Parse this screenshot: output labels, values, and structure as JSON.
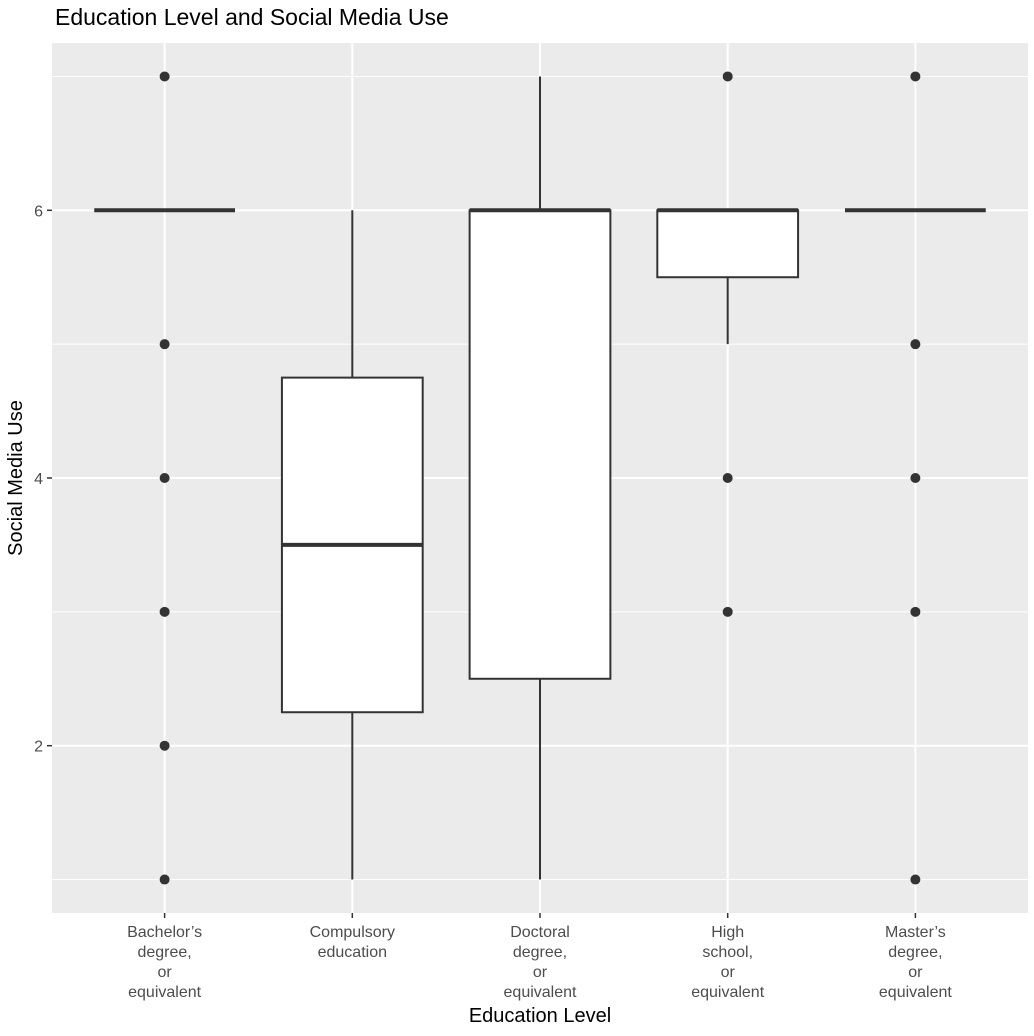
{
  "chart_data": {
    "type": "box",
    "title": "Education Level and Social Media Use",
    "xlabel": "Education Level",
    "ylabel": "Social Media Use",
    "ylim": [
      0.75,
      7.25
    ],
    "yticks": [
      "2",
      "4",
      "6"
    ],
    "categories": [
      [
        "Bachelor’s",
        "degree,",
        "or",
        "equivalent"
      ],
      [
        "Compulsory",
        "education"
      ],
      [
        "Doctoral",
        "degree,",
        "or",
        "equivalent"
      ],
      [
        "High",
        "school,",
        "or",
        "equivalent"
      ],
      [
        "Master’s",
        "degree,",
        "or",
        "equivalent"
      ]
    ],
    "boxes": [
      {
        "q1": 6,
        "median": 6,
        "q3": 6,
        "whisker_low": 6,
        "whisker_high": 6,
        "outliers": [
          7,
          5,
          4,
          3,
          2,
          1
        ]
      },
      {
        "q1": 2.25,
        "median": 3.5,
        "q3": 4.75,
        "whisker_low": 1,
        "whisker_high": 6,
        "outliers": []
      },
      {
        "q1": 2.5,
        "median": 6,
        "q3": 6,
        "whisker_low": 1,
        "whisker_high": 7,
        "outliers": []
      },
      {
        "q1": 5.5,
        "median": 6,
        "q3": 6,
        "whisker_low": 5,
        "whisker_high": 6,
        "outliers": [
          7,
          4,
          3
        ]
      },
      {
        "q1": 6,
        "median": 6,
        "q3": 6,
        "whisker_low": 6,
        "whisker_high": 6,
        "outliers": [
          7,
          5,
          4,
          3,
          1
        ]
      }
    ],
    "grid": true,
    "colors": {
      "panel_background": "#ebebeb",
      "grid_major": "#ffffff",
      "box_fill": "#ffffff",
      "box_line": "#333333",
      "tick_text": "#4d4d4d"
    }
  }
}
